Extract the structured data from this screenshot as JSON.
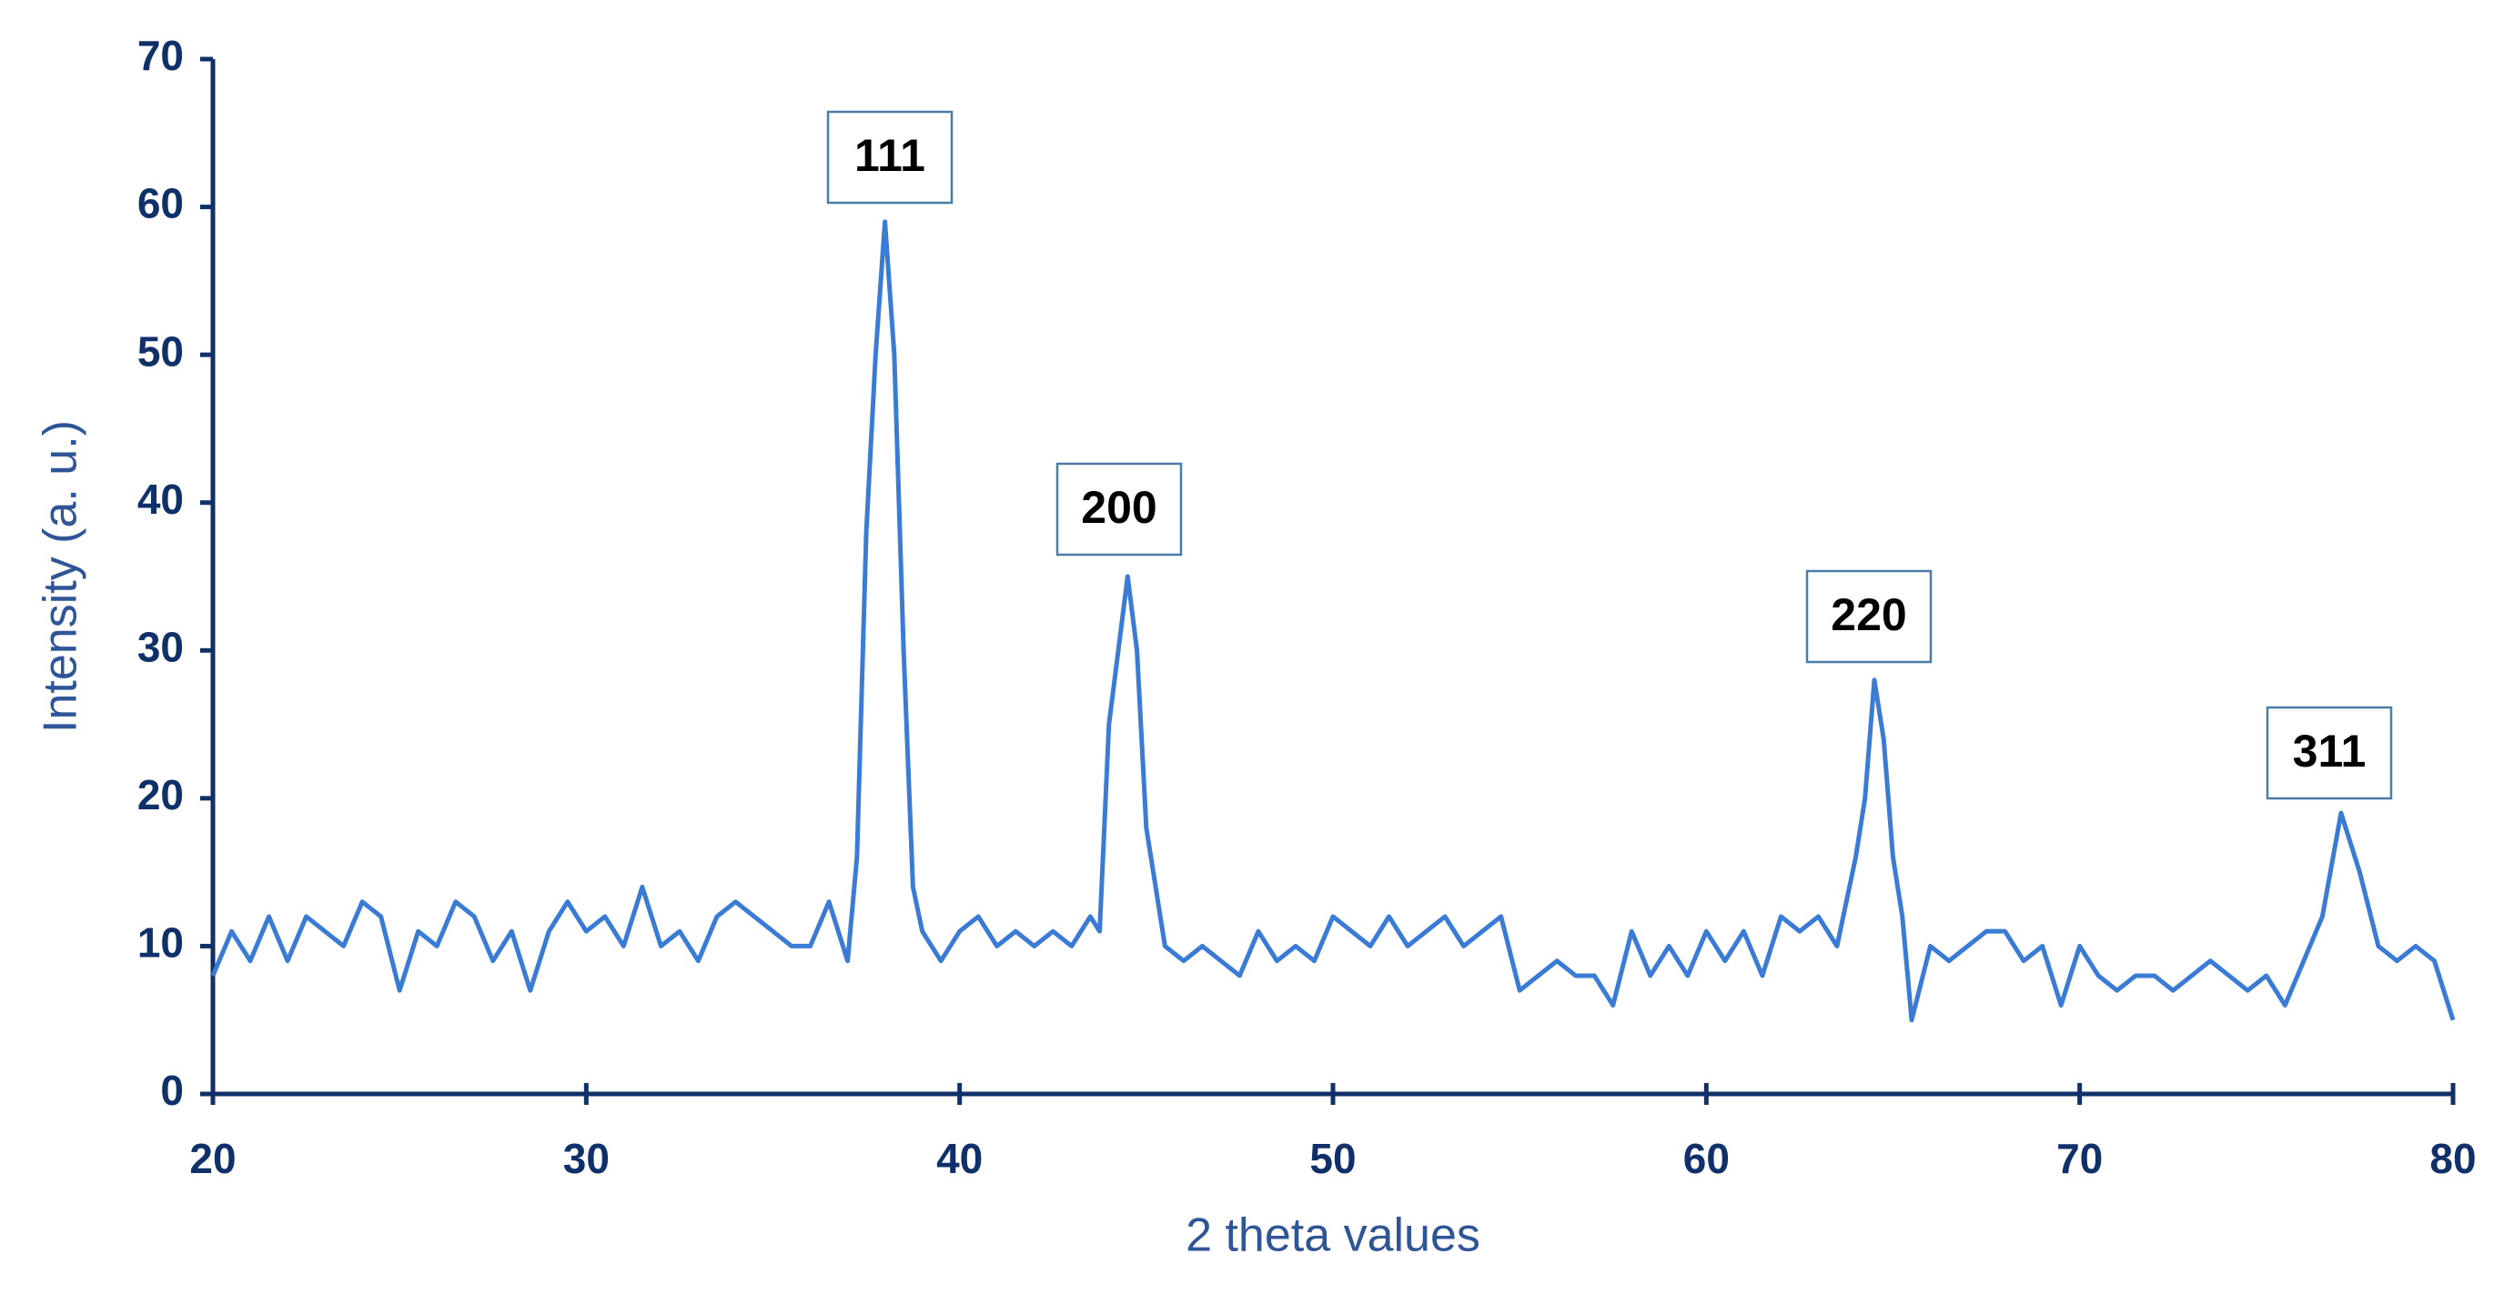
{
  "chart_data": {
    "type": "line",
    "xlabel": "2 theta values",
    "ylabel": "Intensity (a. u.)",
    "annotations": [
      "111",
      "200",
      "220",
      "311"
    ],
    "series": [
      {
        "color": "#3a7bd5",
        "x": [
          20,
          20.5,
          21,
          21.5,
          22,
          22.5,
          23,
          23.5,
          24,
          24.5,
          25,
          25.5,
          26,
          26.5,
          27,
          27.5,
          28,
          28.5,
          29,
          29.5,
          30,
          30.5,
          31,
          31.5,
          32,
          32.5,
          33,
          33.5,
          34,
          34.5,
          35,
          35.5,
          36,
          36.5,
          37,
          37.25,
          37.5,
          37.75,
          38,
          38.25,
          38.5,
          38.75,
          39,
          39.5,
          40,
          40.5,
          41,
          41.5,
          42,
          42.5,
          43,
          43.5,
          43.75,
          44,
          44.25,
          44.5,
          44.75,
          45,
          45.25,
          45.5,
          46,
          46.5,
          47,
          47.5,
          48,
          48.5,
          49,
          49.5,
          50,
          50.5,
          51,
          51.5,
          52,
          52.5,
          53,
          53.5,
          54,
          54.5,
          55,
          55.5,
          56,
          56.5,
          57,
          57.5,
          58,
          58.5,
          59,
          59.5,
          60,
          60.5,
          61,
          61.5,
          62,
          62.5,
          63,
          63.5,
          64,
          64.25,
          64.5,
          64.75,
          65,
          65.25,
          65.5,
          66,
          66.5,
          67,
          67.5,
          68,
          68.5,
          69,
          69.5,
          70,
          70.5,
          71,
          71.5,
          72,
          72.5,
          73,
          73.5,
          74,
          74.5,
          75,
          75.5,
          76,
          76.5,
          77,
          77.5,
          78,
          78.5,
          79,
          79.5,
          80
        ],
        "values": [
          8,
          11,
          9,
          12,
          9,
          12,
          11,
          10,
          13,
          12,
          7,
          11,
          10,
          13,
          12,
          9,
          11,
          7,
          11,
          13,
          11,
          12,
          10,
          14,
          10,
          11,
          9,
          12,
          13,
          12,
          11,
          10,
          10,
          13,
          9,
          16,
          38,
          50,
          59,
          50,
          30,
          14,
          11,
          9,
          11,
          12,
          10,
          11,
          10,
          11,
          10,
          12,
          11,
          25,
          30,
          35,
          30,
          18,
          14,
          10,
          9,
          10,
          9,
          8,
          11,
          9,
          10,
          9,
          12,
          11,
          10,
          12,
          10,
          11,
          12,
          10,
          11,
          12,
          7,
          8,
          9,
          8,
          8,
          6,
          11,
          8,
          10,
          8,
          11,
          9,
          11,
          8,
          12,
          11,
          12,
          10,
          16,
          20,
          28,
          24,
          16,
          12,
          5,
          10,
          9,
          10,
          11,
          11,
          9,
          10,
          6,
          10,
          8,
          7,
          8,
          8,
          7,
          8,
          9,
          8,
          7,
          8,
          6,
          9,
          12,
          19,
          15,
          10,
          9,
          10,
          9,
          5
        ]
      }
    ],
    "xlim": [
      20,
      80
    ],
    "ylim": [
      0,
      70
    ],
    "xticks": [
      20,
      30,
      40,
      50,
      60,
      70,
      80
    ],
    "yticks": [
      0,
      10,
      20,
      30,
      40,
      50,
      60,
      70
    ]
  }
}
